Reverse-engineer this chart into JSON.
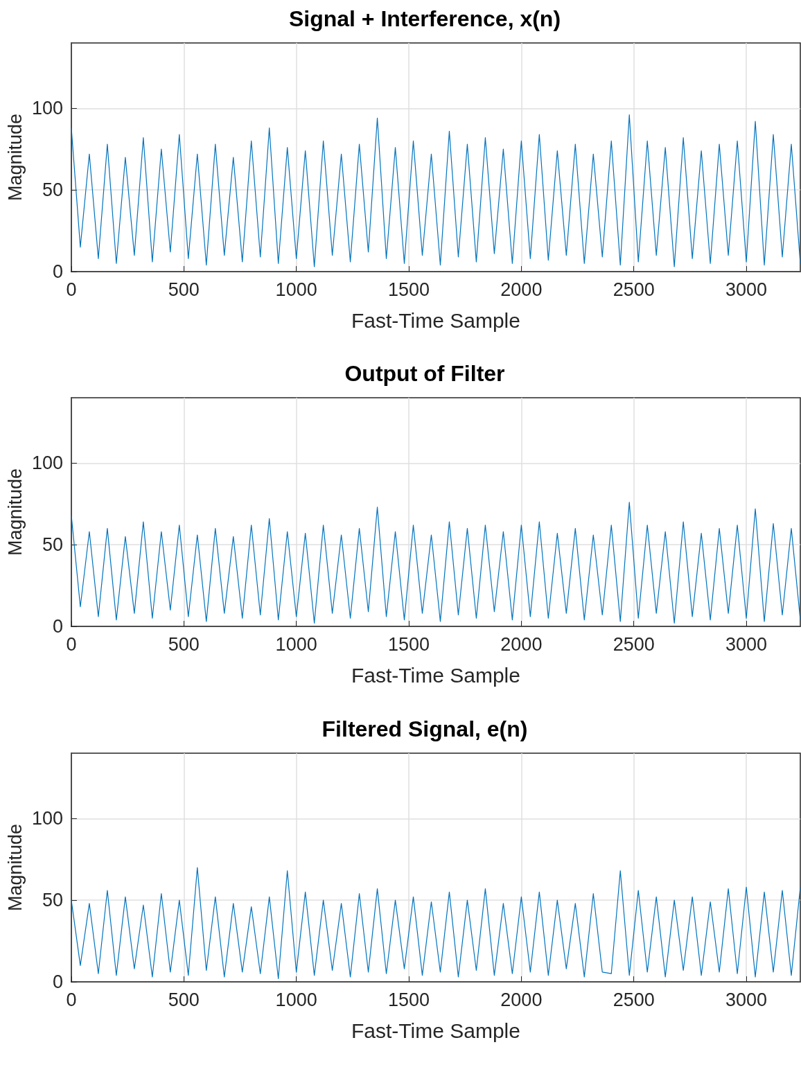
{
  "chart_data": [
    {
      "type": "line",
      "title": "Signal + Interference, x(n)",
      "xlabel": "Fast-Time Sample",
      "ylabel": "Magnitude",
      "xlim": [
        0,
        3240
      ],
      "xticks": [
        0,
        500,
        1000,
        1500,
        2000,
        2500,
        3000
      ],
      "ylim": [
        0,
        140
      ],
      "yticks": [
        0,
        50,
        100
      ],
      "grid": true,
      "x": [
        0,
        40,
        80,
        120,
        160,
        200,
        240,
        280,
        320,
        360,
        400,
        440,
        480,
        520,
        560,
        600,
        640,
        680,
        720,
        760,
        800,
        840,
        880,
        920,
        960,
        1000,
        1040,
        1080,
        1120,
        1160,
        1200,
        1240,
        1280,
        1320,
        1360,
        1400,
        1440,
        1480,
        1520,
        1560,
        1600,
        1640,
        1680,
        1720,
        1760,
        1800,
        1840,
        1880,
        1920,
        1960,
        2000,
        2040,
        2080,
        2120,
        2160,
        2200,
        2240,
        2280,
        2320,
        2360,
        2400,
        2440,
        2480,
        2520,
        2560,
        2600,
        2640,
        2680,
        2720,
        2760,
        2800,
        2840,
        2880,
        2920,
        2960,
        3000,
        3040,
        3080,
        3120,
        3160,
        3200,
        3240
      ],
      "series": [
        {
          "color": "#0072bd",
          "values": [
            88,
            15,
            72,
            8,
            78,
            5,
            70,
            10,
            82,
            6,
            75,
            12,
            84,
            8,
            72,
            4,
            78,
            10,
            70,
            6,
            80,
            9,
            88,
            5,
            76,
            8,
            74,
            3,
            80,
            10,
            72,
            6,
            78,
            12,
            94,
            8,
            76,
            5,
            80,
            10,
            72,
            4,
            86,
            9,
            78,
            6,
            82,
            11,
            75,
            5,
            80,
            8,
            84,
            7,
            74,
            10,
            78,
            5,
            72,
            9,
            80,
            4,
            96,
            6,
            80,
            10,
            76,
            3,
            82,
            8,
            74,
            5,
            78,
            10,
            80,
            6,
            92,
            4,
            84,
            9,
            78,
            5
          ]
        }
      ]
    },
    {
      "type": "line",
      "title": "Output of Filter",
      "xlabel": "Fast-Time Sample",
      "ylabel": "Magnitude",
      "xlim": [
        0,
        3240
      ],
      "xticks": [
        0,
        500,
        1000,
        1500,
        2000,
        2500,
        3000
      ],
      "ylim": [
        0,
        140
      ],
      "yticks": [
        0,
        50,
        100
      ],
      "grid": true,
      "x": [
        0,
        40,
        80,
        120,
        160,
        200,
        240,
        280,
        320,
        360,
        400,
        440,
        480,
        520,
        560,
        600,
        640,
        680,
        720,
        760,
        800,
        840,
        880,
        920,
        960,
        1000,
        1040,
        1080,
        1120,
        1160,
        1200,
        1240,
        1280,
        1320,
        1360,
        1400,
        1440,
        1480,
        1520,
        1560,
        1600,
        1640,
        1680,
        1720,
        1760,
        1800,
        1840,
        1880,
        1920,
        1960,
        2000,
        2040,
        2080,
        2120,
        2160,
        2200,
        2240,
        2280,
        2320,
        2360,
        2400,
        2440,
        2480,
        2520,
        2560,
        2600,
        2640,
        2680,
        2720,
        2760,
        2800,
        2840,
        2880,
        2920,
        2960,
        3000,
        3040,
        3080,
        3120,
        3160,
        3200,
        3240
      ],
      "series": [
        {
          "color": "#0072bd",
          "values": [
            68,
            12,
            58,
            6,
            60,
            4,
            55,
            8,
            64,
            5,
            58,
            10,
            62,
            6,
            56,
            3,
            60,
            8,
            55,
            5,
            62,
            7,
            66,
            4,
            58,
            6,
            57,
            2,
            62,
            8,
            56,
            5,
            60,
            9,
            73,
            6,
            58,
            4,
            62,
            8,
            56,
            3,
            64,
            7,
            60,
            5,
            62,
            9,
            58,
            4,
            62,
            6,
            64,
            5,
            57,
            8,
            60,
            4,
            56,
            7,
            62,
            3,
            76,
            5,
            62,
            8,
            58,
            2,
            64,
            6,
            57,
            4,
            60,
            8,
            62,
            5,
            72,
            3,
            63,
            7,
            60,
            4
          ]
        }
      ]
    },
    {
      "type": "line",
      "title": "Filtered Signal, e(n)",
      "xlabel": "Fast-Time Sample",
      "ylabel": "Magnitude",
      "xlim": [
        0,
        3240
      ],
      "xticks": [
        0,
        500,
        1000,
        1500,
        2000,
        2500,
        3000
      ],
      "ylim": [
        0,
        140
      ],
      "yticks": [
        0,
        50,
        100
      ],
      "grid": true,
      "x": [
        0,
        40,
        80,
        120,
        160,
        200,
        240,
        280,
        320,
        360,
        400,
        440,
        480,
        520,
        560,
        600,
        640,
        680,
        720,
        760,
        800,
        840,
        880,
        920,
        960,
        1000,
        1040,
        1080,
        1120,
        1160,
        1200,
        1240,
        1280,
        1320,
        1360,
        1400,
        1440,
        1480,
        1520,
        1560,
        1600,
        1640,
        1680,
        1720,
        1760,
        1800,
        1840,
        1880,
        1920,
        1960,
        2000,
        2040,
        2080,
        2120,
        2160,
        2200,
        2240,
        2280,
        2320,
        2360,
        2400,
        2440,
        2480,
        2520,
        2560,
        2600,
        2640,
        2680,
        2720,
        2760,
        2800,
        2840,
        2880,
        2920,
        2960,
        3000,
        3040,
        3080,
        3120,
        3160,
        3200,
        3240
      ],
      "series": [
        {
          "color": "#0072bd",
          "values": [
            50,
            10,
            48,
            5,
            56,
            4,
            52,
            8,
            47,
            3,
            54,
            6,
            50,
            4,
            70,
            7,
            52,
            3,
            48,
            6,
            46,
            5,
            52,
            2,
            68,
            6,
            55,
            4,
            50,
            7,
            48,
            3,
            54,
            6,
            57,
            5,
            50,
            8,
            52,
            4,
            49,
            6,
            55,
            3,
            50,
            7,
            57,
            4,
            48,
            5,
            52,
            6,
            55,
            4,
            50,
            8,
            48,
            3,
            54,
            6,
            5,
            68,
            4,
            56,
            6,
            52,
            3,
            50,
            7,
            52,
            4,
            49,
            6,
            57,
            5,
            58,
            3,
            55,
            6,
            56,
            4,
            58
          ]
        }
      ]
    }
  ]
}
